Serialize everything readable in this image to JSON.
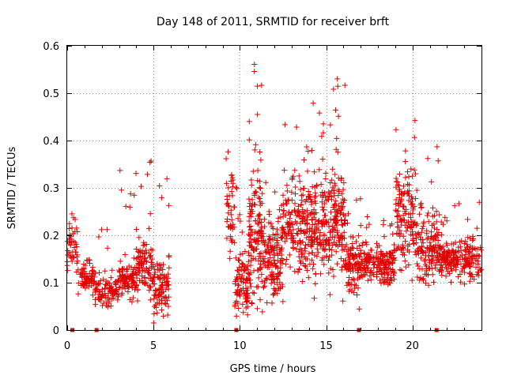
{
  "chart_data": {
    "type": "scatter",
    "title": "Day 148 of 2011, SRMTID for receiver brft",
    "xlabel": "GPS time / hours",
    "ylabel": "SRMTID / TECUs",
    "xlim": [
      0,
      24
    ],
    "ylim": [
      0,
      0.6
    ],
    "x_ticks": [
      0,
      5,
      10,
      15,
      20
    ],
    "y_ticks": [
      0,
      0.1,
      0.2,
      0.3,
      0.4,
      0.5,
      0.6
    ],
    "x_tick_labels": [
      "0",
      "5",
      "10",
      "15",
      "20"
    ],
    "y_tick_labels": [
      "0",
      "0.1",
      "0.2",
      "0.3",
      "0.4",
      "0.5",
      "0.6"
    ],
    "grid": true,
    "marker": "plus",
    "color": "#e00000",
    "baseline_markers_x": [
      0.3,
      1.7,
      9.8,
      16.9,
      21.4
    ],
    "segments": [
      {
        "start": 0.0,
        "end": 0.6,
        "base": 0.17,
        "spread": 0.05,
        "peak": 0.25,
        "n": 45
      },
      {
        "start": 0.6,
        "end": 1.6,
        "base": 0.11,
        "spread": 0.03,
        "peak": 0.15,
        "n": 70
      },
      {
        "start": 1.6,
        "end": 3.0,
        "base": 0.08,
        "spread": 0.03,
        "peak": 0.23,
        "n": 100
      },
      {
        "start": 3.0,
        "end": 4.0,
        "base": 0.11,
        "spread": 0.04,
        "peak": 0.4,
        "n": 100
      },
      {
        "start": 4.0,
        "end": 5.0,
        "base": 0.13,
        "spread": 0.06,
        "peak": 0.36,
        "n": 100
      },
      {
        "start": 5.0,
        "end": 5.9,
        "base": 0.08,
        "spread": 0.06,
        "peak": 0.33,
        "n": 90
      },
      {
        "start": 9.2,
        "end": 9.7,
        "base": 0.25,
        "spread": 0.1,
        "peak": 0.39,
        "n": 45
      },
      {
        "start": 9.7,
        "end": 10.5,
        "base": 0.1,
        "spread": 0.06,
        "peak": 0.32,
        "n": 90
      },
      {
        "start": 10.5,
        "end": 11.3,
        "base": 0.2,
        "spread": 0.12,
        "peak": 0.57,
        "n": 140
      },
      {
        "start": 11.3,
        "end": 12.5,
        "base": 0.15,
        "spread": 0.09,
        "peak": 0.34,
        "n": 150
      },
      {
        "start": 12.5,
        "end": 14.0,
        "base": 0.22,
        "spread": 0.09,
        "peak": 0.45,
        "n": 170
      },
      {
        "start": 14.0,
        "end": 15.2,
        "base": 0.22,
        "spread": 0.1,
        "peak": 0.51,
        "n": 160
      },
      {
        "start": 15.2,
        "end": 16.1,
        "base": 0.22,
        "spread": 0.12,
        "peak": 0.58,
        "n": 130
      },
      {
        "start": 16.1,
        "end": 17.0,
        "base": 0.14,
        "spread": 0.06,
        "peak": 0.28,
        "n": 100
      },
      {
        "start": 17.0,
        "end": 19.0,
        "base": 0.14,
        "spread": 0.04,
        "peak": 0.25,
        "n": 190
      },
      {
        "start": 19.0,
        "end": 20.2,
        "base": 0.24,
        "spread": 0.1,
        "peak": 0.45,
        "n": 140
      },
      {
        "start": 20.2,
        "end": 21.5,
        "base": 0.17,
        "spread": 0.07,
        "peak": 0.4,
        "n": 140
      },
      {
        "start": 21.5,
        "end": 24.0,
        "base": 0.15,
        "spread": 0.04,
        "peak": 0.27,
        "n": 220
      }
    ]
  }
}
